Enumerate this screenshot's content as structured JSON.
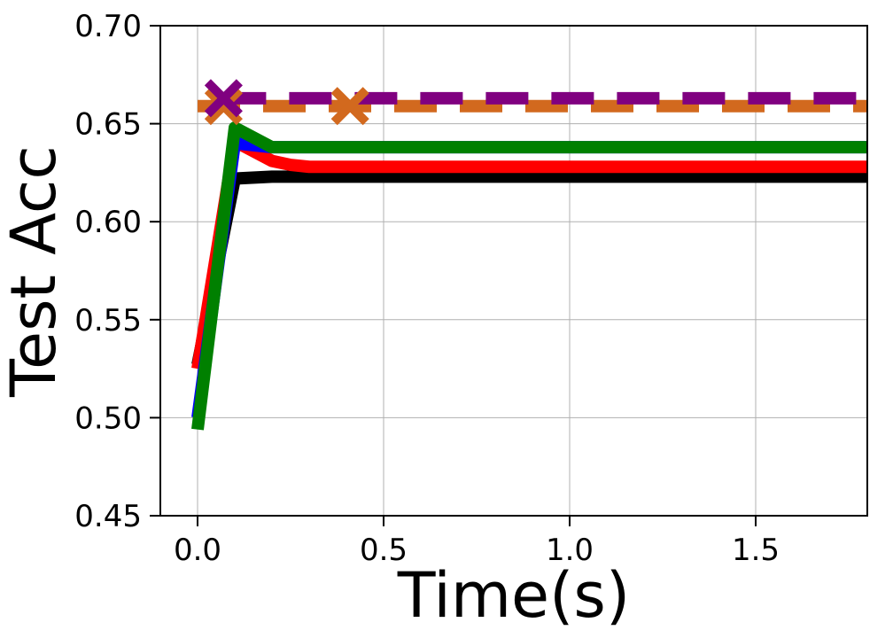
{
  "chart_data": {
    "type": "line",
    "title": "",
    "xlabel": "Time(s)",
    "ylabel": "Test Acc",
    "xlim": [
      -0.1,
      1.8
    ],
    "ylim": [
      0.45,
      0.7
    ],
    "xticks": [
      0.0,
      0.5,
      1.0,
      1.5
    ],
    "xtick_labels": [
      "0.0",
      "0.5",
      "1.0",
      "1.5"
    ],
    "yticks": [
      0.45,
      0.5,
      0.55,
      0.6,
      0.65,
      0.7
    ],
    "ytick_labels": [
      "0.45",
      "0.50",
      "0.55",
      "0.60",
      "0.65",
      "0.70"
    ],
    "grid": true,
    "legend": "none",
    "series": [
      {
        "color": "#000000",
        "style": "solid",
        "x": [
          0.0,
          0.1,
          0.2,
          0.3,
          1.8
        ],
        "y": [
          0.527,
          0.622,
          0.623,
          0.623,
          0.623
        ]
      },
      {
        "color": "#ff0000",
        "style": "solid",
        "x": [
          0.0,
          0.1,
          0.2,
          0.25,
          0.3,
          1.8
        ],
        "y": [
          0.525,
          0.641,
          0.631,
          0.629,
          0.628,
          0.628
        ]
      },
      {
        "color": "#0000ff",
        "style": "solid",
        "x": [
          0.0,
          0.1,
          0.2,
          0.3,
          1.8
        ],
        "y": [
          0.5,
          0.64,
          0.638,
          0.638,
          0.638
        ]
      },
      {
        "color": "#008000",
        "style": "solid",
        "x": [
          0.0,
          0.1,
          0.2,
          0.3,
          1.8
        ],
        "y": [
          0.494,
          0.648,
          0.638,
          0.638,
          0.638
        ]
      },
      {
        "color": "#800080",
        "style": "dashed",
        "marker": "x",
        "x": [
          0.07,
          1.8
        ],
        "y": [
          0.663,
          0.663
        ],
        "marker_points": [
          {
            "x": 0.07,
            "y": 0.663
          }
        ]
      },
      {
        "color": "#d2691e",
        "style": "dashed",
        "marker": "x",
        "x": [
          0.0,
          1.8
        ],
        "y": [
          0.659,
          0.659
        ],
        "marker_points": [
          {
            "x": 0.07,
            "y": 0.659
          },
          {
            "x": 0.41,
            "y": 0.659
          }
        ]
      }
    ]
  }
}
